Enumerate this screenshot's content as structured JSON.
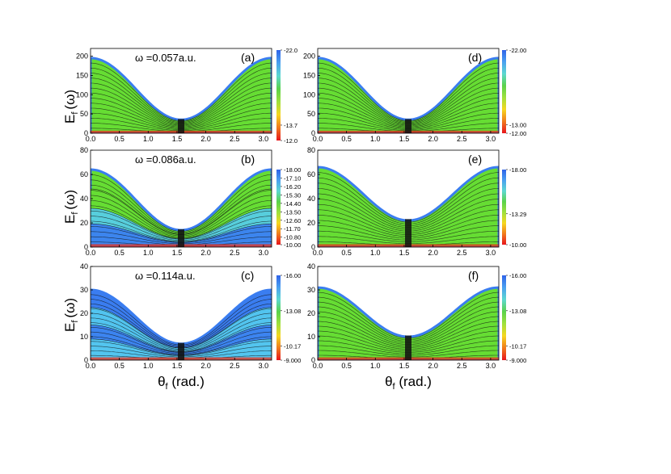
{
  "figure": {
    "ylabel_main": "E",
    "ylabel_sub": "f",
    "ylabel_paren": "(ω)",
    "xlabel_main": "θ",
    "xlabel_sub": "f",
    "xlabel_rest": " (rad.)"
  },
  "colors": {
    "colorbar_stops": [
      "#e8141c",
      "#f07a1c",
      "#f6d71e",
      "#9fe03c",
      "#5ad24a",
      "#5cd8d0",
      "#4aa0f0",
      "#2f63e8"
    ],
    "fill_green": "#66dd33",
    "fill_blue": "#3a7df0",
    "fill_cyan": "#55ccee",
    "fill_red": "#e8321c",
    "contour_line": "#111111"
  },
  "chart_data": [
    {
      "id": "a",
      "type": "heatmap",
      "tag": "(a)",
      "omega_label": "ω =0.057a.u.",
      "x_range": [
        0,
        3.14159
      ],
      "ylim": [
        0,
        220
      ],
      "x_ticks": [
        "0.0",
        "0.5",
        "1.0",
        "1.5",
        "2.0",
        "2.5",
        "3.0"
      ],
      "y_ticks": [
        "0",
        "50",
        "100",
        "150",
        "200"
      ],
      "y_tick_values": [
        0,
        50,
        100,
        150,
        200
      ],
      "boundary": {
        "Emax": 195,
        "Emin": 35
      },
      "fill": "green",
      "colorbar_range": [
        -22.0,
        -12.0
      ],
      "colorbar_labels": [
        "-22.0",
        "-13.7",
        "-12.0"
      ],
      "colorbar_label_values": [
        -22.0,
        -13.7,
        -12.0
      ]
    },
    {
      "id": "b",
      "type": "heatmap",
      "tag": "(b)",
      "omega_label": "ω =0.086a.u.",
      "x_range": [
        0,
        3.14159
      ],
      "ylim": [
        0,
        80
      ],
      "x_ticks": [
        "0.0",
        "0.5",
        "1.0",
        "1.5",
        "2.0",
        "2.5",
        "3.0"
      ],
      "y_ticks": [
        "0",
        "20",
        "40",
        "60",
        "80"
      ],
      "y_tick_values": [
        0,
        20,
        40,
        60,
        80
      ],
      "boundary": {
        "Emax": 64,
        "Emin": 14
      },
      "fill": "mixed",
      "colorbar_range": [
        -18.0,
        -10.0
      ],
      "colorbar_labels": [
        "-18.00",
        "-17.10",
        "-16.20",
        "-15.30",
        "-14.40",
        "-13.50",
        "-12.60",
        "-11.70",
        "-10.80",
        "-10.00"
      ],
      "colorbar_label_values": [
        -18.0,
        -17.1,
        -16.2,
        -15.3,
        -14.4,
        -13.5,
        -12.6,
        -11.7,
        -10.8,
        -10.0
      ]
    },
    {
      "id": "c",
      "type": "heatmap",
      "tag": "(c)",
      "omega_label": "ω =0.114a.u.",
      "x_range": [
        0,
        3.14159
      ],
      "ylim": [
        0,
        40
      ],
      "x_ticks": [
        "0.0",
        "0.5",
        "1.0",
        "1.5",
        "2.0",
        "2.5",
        "3.0"
      ],
      "y_ticks": [
        "0",
        "10",
        "20",
        "30",
        "40"
      ],
      "y_tick_values": [
        0,
        10,
        20,
        30,
        40
      ],
      "boundary": {
        "Emax": 30,
        "Emin": 7
      },
      "fill": "blue",
      "colorbar_range": [
        -16.0,
        -9.0
      ],
      "colorbar_labels": [
        "-16.00",
        "-13.08",
        "-10.17",
        "-9.000"
      ],
      "colorbar_label_values": [
        -16.0,
        -13.08,
        -10.17,
        -9.0
      ]
    },
    {
      "id": "d",
      "type": "heatmap",
      "tag": "(d)",
      "omega_label": "",
      "x_range": [
        0,
        3.14159
      ],
      "ylim": [
        0,
        220
      ],
      "x_ticks": [
        "0.0",
        "0.5",
        "1.0",
        "1.5",
        "2.0",
        "2.5",
        "3.0"
      ],
      "y_ticks": [
        "0",
        "50",
        "100",
        "150",
        "200"
      ],
      "y_tick_values": [
        0,
        50,
        100,
        150,
        200
      ],
      "boundary": {
        "Emax": 195,
        "Emin": 35
      },
      "fill": "green",
      "colorbar_range": [
        -22.0,
        -12.0
      ],
      "colorbar_labels": [
        "-22.00",
        "-13.00",
        "-12.00"
      ],
      "colorbar_label_values": [
        -22.0,
        -13.0,
        -12.0
      ]
    },
    {
      "id": "e",
      "type": "heatmap",
      "tag": "(e)",
      "omega_label": "",
      "x_range": [
        0,
        3.14159
      ],
      "ylim": [
        0,
        80
      ],
      "x_ticks": [
        "0.0",
        "0.5",
        "1.0",
        "1.5",
        "2.0",
        "2.5",
        "3.0"
      ],
      "y_ticks": [
        "0",
        "20",
        "40",
        "60",
        "80"
      ],
      "y_tick_values": [
        0,
        20,
        40,
        60,
        80
      ],
      "boundary": {
        "Emax": 66,
        "Emin": 22
      },
      "fill": "green",
      "colorbar_range": [
        -18.0,
        -10.0
      ],
      "colorbar_labels": [
        "-18.00",
        "-13.29",
        "-10.00"
      ],
      "colorbar_label_values": [
        -18.0,
        -13.29,
        -10.0
      ]
    },
    {
      "id": "f",
      "type": "heatmap",
      "tag": "(f)",
      "omega_label": "",
      "x_range": [
        0,
        3.14159
      ],
      "ylim": [
        0,
        40
      ],
      "x_ticks": [
        "0.0",
        "0.5",
        "1.0",
        "1.5",
        "2.0",
        "2.5",
        "3.0"
      ],
      "y_ticks": [
        "0",
        "10",
        "20",
        "30",
        "40"
      ],
      "y_tick_values": [
        0,
        10,
        20,
        30,
        40
      ],
      "boundary": {
        "Emax": 31,
        "Emin": 10
      },
      "fill": "green",
      "colorbar_range": [
        -16.0,
        -9.0
      ],
      "colorbar_labels": [
        "-16.00",
        "-13.08",
        "-10.17",
        "-9.000"
      ],
      "colorbar_label_values": [
        -16.0,
        -13.08,
        -10.17,
        -9.0
      ]
    }
  ]
}
